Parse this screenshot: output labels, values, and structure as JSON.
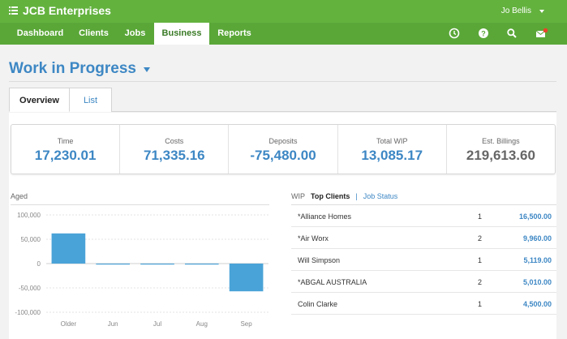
{
  "app": {
    "title": "JCB Enterprises",
    "user": "Jo Bellis"
  },
  "nav": {
    "items": [
      {
        "label": "Dashboard"
      },
      {
        "label": "Clients"
      },
      {
        "label": "Jobs"
      },
      {
        "label": "Business",
        "active": true
      },
      {
        "label": "Reports"
      }
    ],
    "icons": [
      "clock-icon",
      "help-icon",
      "search-icon",
      "mail-icon"
    ]
  },
  "page": {
    "title": "Work in Progress",
    "tabs": [
      {
        "label": "Overview",
        "active": true
      },
      {
        "label": "List"
      }
    ]
  },
  "metrics": [
    {
      "label": "Time",
      "value": "17,230.01",
      "color": "#3d87c4"
    },
    {
      "label": "Costs",
      "value": "71,335.16",
      "color": "#3d87c4"
    },
    {
      "label": "Deposits",
      "value": "-75,480.00",
      "color": "#3d87c4"
    },
    {
      "label": "Total WIP",
      "value": "13,085.17",
      "color": "#3d87c4"
    },
    {
      "label": "Est. Billings",
      "value": "219,613.60",
      "color": "#666666"
    }
  ],
  "aged": {
    "label": "Aged",
    "chart_data": {
      "type": "bar",
      "categories": [
        "Older",
        "Jun",
        "Jul",
        "Aug",
        "Sep"
      ],
      "values": [
        62000,
        -1500,
        -2000,
        -1000,
        -57000
      ],
      "ylim": [
        -100000,
        100000
      ],
      "ytick_labels": [
        "100,000",
        "50,000",
        "0",
        "-50,000",
        "-100,000"
      ],
      "ytick_values": [
        100000,
        50000,
        0,
        -50000,
        -100000
      ],
      "bar_color": "#4aa3d8",
      "grid": true
    }
  },
  "wip": {
    "label": "WIP",
    "active_view": "Top Clients",
    "separator": "|",
    "alt_view": "Job Status",
    "rows": [
      {
        "name": "*Alliance Homes",
        "count": "1",
        "amount": "16,500.00"
      },
      {
        "name": "*Air Worx",
        "count": "2",
        "amount": "9,960.00"
      },
      {
        "name": "Will Simpson",
        "count": "1",
        "amount": "5,119.00"
      },
      {
        "name": "*ABGAL AUSTRALIA",
        "count": "2",
        "amount": "5,010.00"
      },
      {
        "name": "Colin Clarke",
        "count": "1",
        "amount": "4,500.00"
      }
    ]
  },
  "colors": {
    "header": "#63b23e",
    "nav": "#5aa738",
    "accent": "#3d87c4",
    "notify": "#e8442a"
  }
}
